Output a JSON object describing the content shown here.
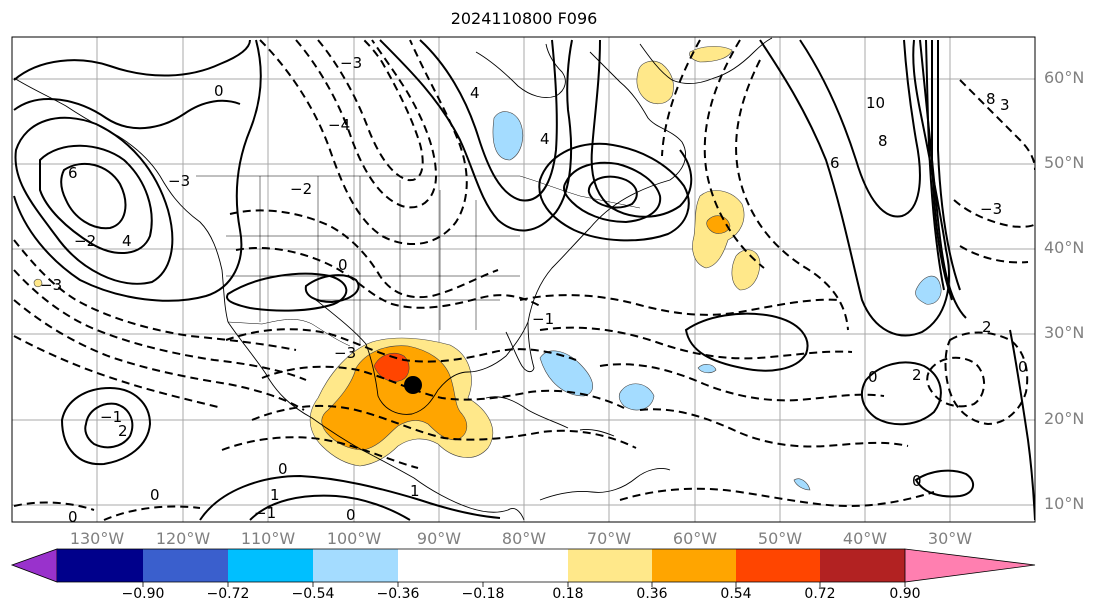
{
  "title": "2024110800 F096",
  "longitude_labels": [
    "130°W",
    "120°W",
    "110°W",
    "100°W",
    "90°W",
    "80°W",
    "70°W",
    "60°W",
    "50°W",
    "40°W",
    "30°W"
  ],
  "latitude_labels": [
    "60°N",
    "50°N",
    "40°N",
    "30°N",
    "20°N",
    "10°N"
  ],
  "colorbar": {
    "ticks": [
      "−0.90",
      "−0.72",
      "−0.54",
      "−0.36",
      "−0.18",
      "0.18",
      "0.36",
      "0.54",
      "0.72",
      "0.90"
    ],
    "colors": [
      "#9932cc",
      "#00008b",
      "#3a5fcd",
      "#00bfff",
      "#a4dcff",
      "#ffffff",
      "#ffe88a",
      "#ffa500",
      "#ff4500",
      "#b22222",
      "#ff7fb0"
    ]
  },
  "contour_labels": [
    "0",
    "2",
    "4",
    "6",
    "8",
    "10",
    "−1",
    "−2",
    "−3",
    "−4",
    "1",
    "3"
  ],
  "center_marker": "tropical-cyclone-center"
}
